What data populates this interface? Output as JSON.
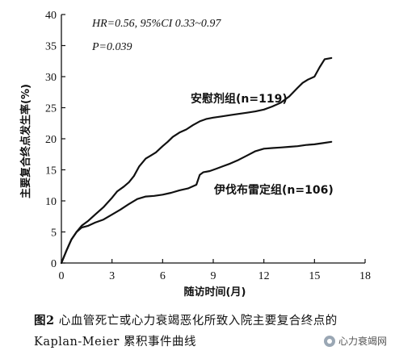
{
  "chart_data": {
    "type": "line",
    "title": "",
    "xlabel": "随访时间(月)",
    "ylabel": "主要复合终点发生率(%)",
    "xlim": [
      0,
      18
    ],
    "ylim": [
      0,
      40
    ],
    "xticks": [
      0,
      3,
      6,
      9,
      12,
      15,
      18
    ],
    "yticks": [
      0,
      5,
      10,
      15,
      20,
      25,
      30,
      35,
      40
    ],
    "grid": false,
    "annotations": [
      "HR=0.56, 95%CI 0.33~0.97",
      "P=0.039"
    ],
    "series": [
      {
        "name": "安慰剂组(n=119)",
        "x": [
          0,
          0.3,
          0.6,
          0.9,
          1.2,
          1.6,
          2.0,
          2.5,
          3.0,
          3.3,
          3.7,
          4.0,
          4.3,
          4.6,
          5.0,
          5.3,
          5.6,
          6.0,
          6.3,
          6.6,
          7.0,
          7.4,
          7.8,
          8.2,
          8.6,
          9.0,
          9.5,
          10.0,
          10.5,
          11.0,
          11.5,
          12.0,
          12.5,
          13.0,
          13.5,
          14.0,
          14.3,
          14.6,
          15.0,
          15.3,
          15.6,
          16.0
        ],
        "y": [
          0,
          2.0,
          3.8,
          5.0,
          6.0,
          6.8,
          7.8,
          9.0,
          10.5,
          11.5,
          12.3,
          13.0,
          14.0,
          15.5,
          16.8,
          17.3,
          17.8,
          18.8,
          19.5,
          20.3,
          21.0,
          21.5,
          22.2,
          22.8,
          23.2,
          23.4,
          23.6,
          23.8,
          24.0,
          24.2,
          24.4,
          24.7,
          25.2,
          25.8,
          26.8,
          28.2,
          29.0,
          29.5,
          30.0,
          31.5,
          32.8,
          33.0
        ]
      },
      {
        "name": "伊伐布雷定组(n=106)",
        "x": [
          0,
          0.3,
          0.6,
          0.9,
          1.2,
          1.6,
          2.0,
          2.5,
          3.0,
          3.5,
          4.0,
          4.5,
          5.0,
          5.5,
          6.0,
          6.5,
          7.0,
          7.5,
          8.0,
          8.2,
          8.4,
          8.8,
          9.2,
          9.6,
          10.0,
          10.5,
          11.0,
          11.5,
          12.0,
          12.5,
          13.0,
          13.5,
          14.0,
          14.5,
          15.0,
          15.5,
          16.0
        ],
        "y": [
          0,
          2.0,
          3.8,
          5.0,
          5.7,
          6.0,
          6.5,
          7.0,
          7.8,
          8.6,
          9.5,
          10.3,
          10.7,
          10.8,
          11.0,
          11.3,
          11.7,
          12.0,
          12.6,
          14.2,
          14.6,
          14.8,
          15.2,
          15.6,
          16.0,
          16.6,
          17.3,
          18.0,
          18.4,
          18.5,
          18.6,
          18.7,
          18.8,
          19.0,
          19.1,
          19.3,
          19.5
        ]
      }
    ]
  },
  "labels": {
    "hr": "HR=0.56, 95%CI 0.33~0.97",
    "p": "P=0.039",
    "placebo": "安慰剂组(n=119)",
    "ivabradine": "伊伐布雷定组(n=106)"
  },
  "caption": {
    "figure_no": "图2",
    "text": "心血管死亡或心力衰竭恶化所致入院主要复合终点的 Kaplan-Meier 累积事件曲线"
  },
  "watermark": {
    "text": "心力衰竭网"
  }
}
